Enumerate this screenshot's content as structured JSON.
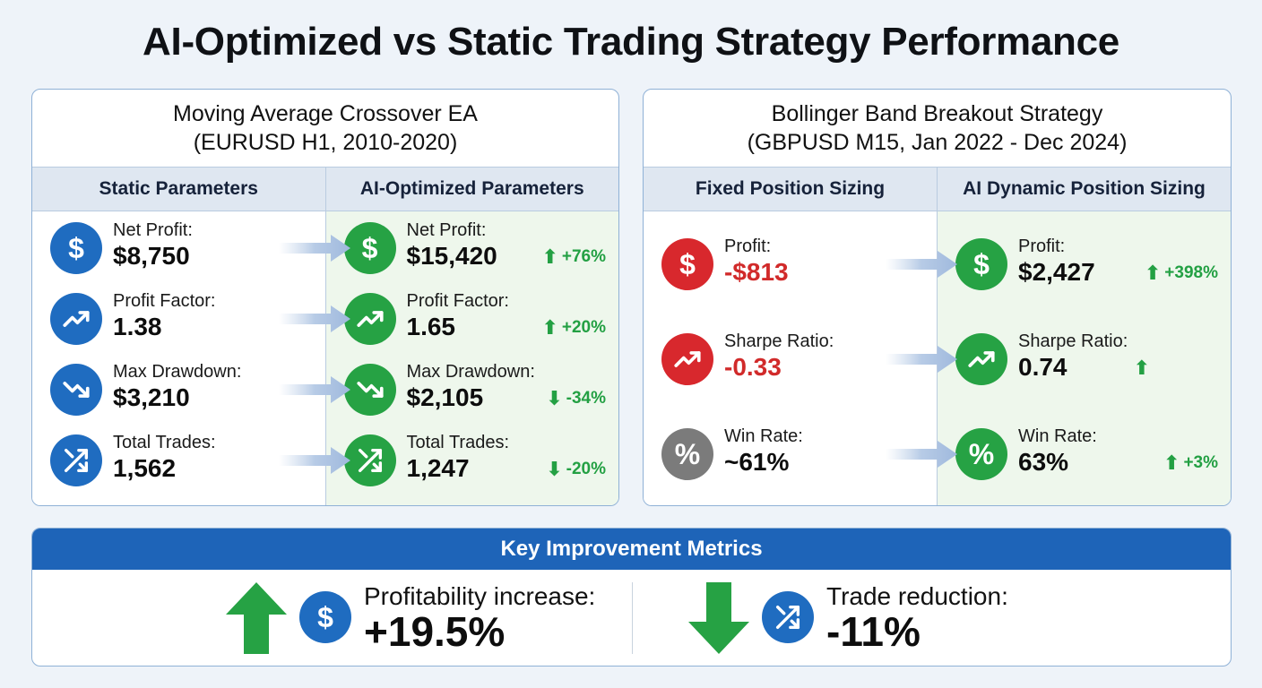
{
  "title": "AI-Optimized vs Static Trading Strategy Performance",
  "panels": [
    {
      "title_line1": "Moving Average Crossover EA",
      "title_line2": "(EURUSD H1, 2010-2020)",
      "left_header": "Static Parameters",
      "right_header": "AI-Optimized Parameters",
      "metrics": [
        {
          "label": "Net Profit:",
          "static_value": "$8,750",
          "ai_value": "$15,420",
          "change": "+76%",
          "direction": "up",
          "icon": "dollar-icon",
          "static_color": "#1f6cc0"
        },
        {
          "label": "Profit Factor:",
          "static_value": "1.38",
          "ai_value": "1.65",
          "change": "+20%",
          "direction": "up",
          "icon": "trend-up-icon",
          "static_color": "#1f6cc0"
        },
        {
          "label": "Max Drawdown:",
          "static_value": "$3,210",
          "ai_value": "$2,105",
          "change": "-34%",
          "direction": "down",
          "icon": "trend-down-icon",
          "static_color": "#1f6cc0"
        },
        {
          "label": "Total Trades:",
          "static_value": "1,562",
          "ai_value": "1,247",
          "change": "-20%",
          "direction": "down",
          "icon": "shuffle-icon",
          "static_color": "#1f6cc0"
        }
      ]
    },
    {
      "title_line1": "Bollinger Band Breakout Strategy",
      "title_line2": "(GBPUSD M15, Jan 2022 - Dec 2024)",
      "left_header": "Fixed Position Sizing",
      "right_header": "AI Dynamic Position Sizing",
      "metrics": [
        {
          "label": "Profit:",
          "static_value": "-$813",
          "ai_value": "$2,427",
          "change": "+398%",
          "direction": "up",
          "icon": "dollar-icon",
          "static_color": "#d8282d"
        },
        {
          "label": "Sharpe Ratio:",
          "static_value": "-0.33",
          "ai_value": "0.74",
          "change": "",
          "direction": "up",
          "icon": "trend-up-icon",
          "static_color": "#d8282d"
        },
        {
          "label": "Win Rate:",
          "static_value": "~61%",
          "ai_value": "63%",
          "change": "+3%",
          "direction": "up",
          "icon": "percent-icon",
          "static_color": "#7b7b7b"
        }
      ]
    }
  ],
  "summary": {
    "title": "Key Improvement Metrics",
    "items": [
      {
        "label": "Profitability increase:",
        "value": "+19.5%",
        "direction": "up",
        "icon": "dollar-icon"
      },
      {
        "label": "Trade reduction:",
        "value": "-11%",
        "direction": "down",
        "icon": "shuffle-icon"
      }
    ]
  },
  "colors": {
    "blue": "#1f6cc0",
    "green": "#26a244",
    "red": "#d8282d",
    "gray": "#7b7b7b",
    "header_blue": "#1e64b8"
  }
}
